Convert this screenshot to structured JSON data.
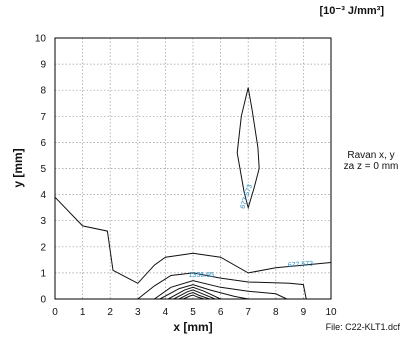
{
  "chart_data": {
    "type": "contour",
    "units_label": "[10⁻³ J/mm³]",
    "xlabel": "x [mm]",
    "ylabel": "y [mm]",
    "xlim": [
      0,
      10
    ],
    "ylim": [
      0,
      10
    ],
    "x_ticks": [
      "0",
      "1",
      "2",
      "3",
      "4",
      "5",
      "6",
      "7",
      "8",
      "9",
      "10"
    ],
    "y_ticks": [
      "0",
      "1",
      "2",
      "3",
      "4",
      "5",
      "6",
      "7",
      "8",
      "9",
      "10"
    ],
    "grid": true,
    "plane_note": [
      "Ravan  x, y",
      "za  z = 0 mm"
    ],
    "file_label": "File: C22-KLT1.dcf",
    "contour_labels": [
      {
        "text": "677.573",
        "x": 7.0,
        "y": 3.9,
        "angle": -72
      },
      {
        "text": "677.573",
        "x": 8.9,
        "y": 1.25,
        "angle": -4
      },
      {
        "text": "1356.65",
        "x": 5.3,
        "y": 0.85,
        "angle": 0
      }
    ],
    "contours": [
      {
        "level": "677.573",
        "points": [
          [
            7.0,
            8.1
          ],
          [
            7.15,
            7.2
          ],
          [
            7.35,
            5.8
          ],
          [
            7.4,
            5.0
          ],
          [
            7.2,
            4.2
          ],
          [
            7.0,
            3.5
          ],
          [
            6.85,
            4.1
          ],
          [
            6.6,
            5.6
          ],
          [
            6.75,
            7.0
          ],
          [
            7.0,
            8.1
          ]
        ]
      },
      {
        "level": "677.573",
        "points": [
          [
            0.0,
            3.9
          ],
          [
            1.0,
            2.8
          ],
          [
            1.9,
            2.6
          ],
          [
            2.1,
            1.1
          ],
          [
            3.0,
            0.6
          ],
          [
            3.6,
            1.3
          ],
          [
            4.0,
            1.6
          ],
          [
            5.0,
            1.75
          ],
          [
            6.0,
            1.6
          ],
          [
            7.0,
            1.0
          ],
          [
            8.0,
            1.2
          ],
          [
            9.0,
            1.3
          ],
          [
            10.0,
            1.4
          ]
        ]
      },
      {
        "level": "1356.65",
        "points": [
          [
            3.0,
            0.0
          ],
          [
            3.6,
            0.5
          ],
          [
            4.2,
            0.9
          ],
          [
            5.0,
            1.0
          ],
          [
            6.0,
            0.8
          ],
          [
            7.0,
            0.65
          ],
          [
            8.5,
            0.6
          ],
          [
            9.0,
            0.55
          ],
          [
            9.1,
            0.0
          ]
        ]
      },
      {
        "level": "contour-4",
        "points": [
          [
            3.6,
            0.0
          ],
          [
            4.2,
            0.45
          ],
          [
            5.0,
            0.7
          ],
          [
            6.0,
            0.45
          ],
          [
            7.0,
            0.3
          ],
          [
            8.0,
            0.2
          ],
          [
            8.4,
            0.0
          ]
        ]
      },
      {
        "level": "contour-5",
        "points": [
          [
            3.8,
            0.0
          ],
          [
            4.5,
            0.4
          ],
          [
            5.0,
            0.55
          ],
          [
            5.6,
            0.35
          ],
          [
            6.5,
            0.1
          ],
          [
            7.0,
            0.0
          ]
        ]
      },
      {
        "level": "contour-6",
        "points": [
          [
            4.1,
            0.0
          ],
          [
            4.7,
            0.35
          ],
          [
            5.0,
            0.45
          ],
          [
            5.4,
            0.3
          ],
          [
            6.0,
            0.0
          ]
        ]
      },
      {
        "level": "contour-7",
        "points": [
          [
            4.3,
            0.0
          ],
          [
            4.8,
            0.28
          ],
          [
            5.0,
            0.35
          ],
          [
            5.3,
            0.22
          ],
          [
            5.8,
            0.0
          ]
        ]
      },
      {
        "level": "contour-8",
        "points": [
          [
            4.5,
            0.0
          ],
          [
            4.85,
            0.2
          ],
          [
            5.0,
            0.25
          ],
          [
            5.2,
            0.15
          ],
          [
            5.6,
            0.0
          ]
        ]
      },
      {
        "level": "contour-9",
        "points": [
          [
            4.65,
            0.0
          ],
          [
            4.9,
            0.12
          ],
          [
            5.0,
            0.15
          ],
          [
            5.15,
            0.08
          ],
          [
            5.4,
            0.0
          ]
        ]
      }
    ]
  }
}
